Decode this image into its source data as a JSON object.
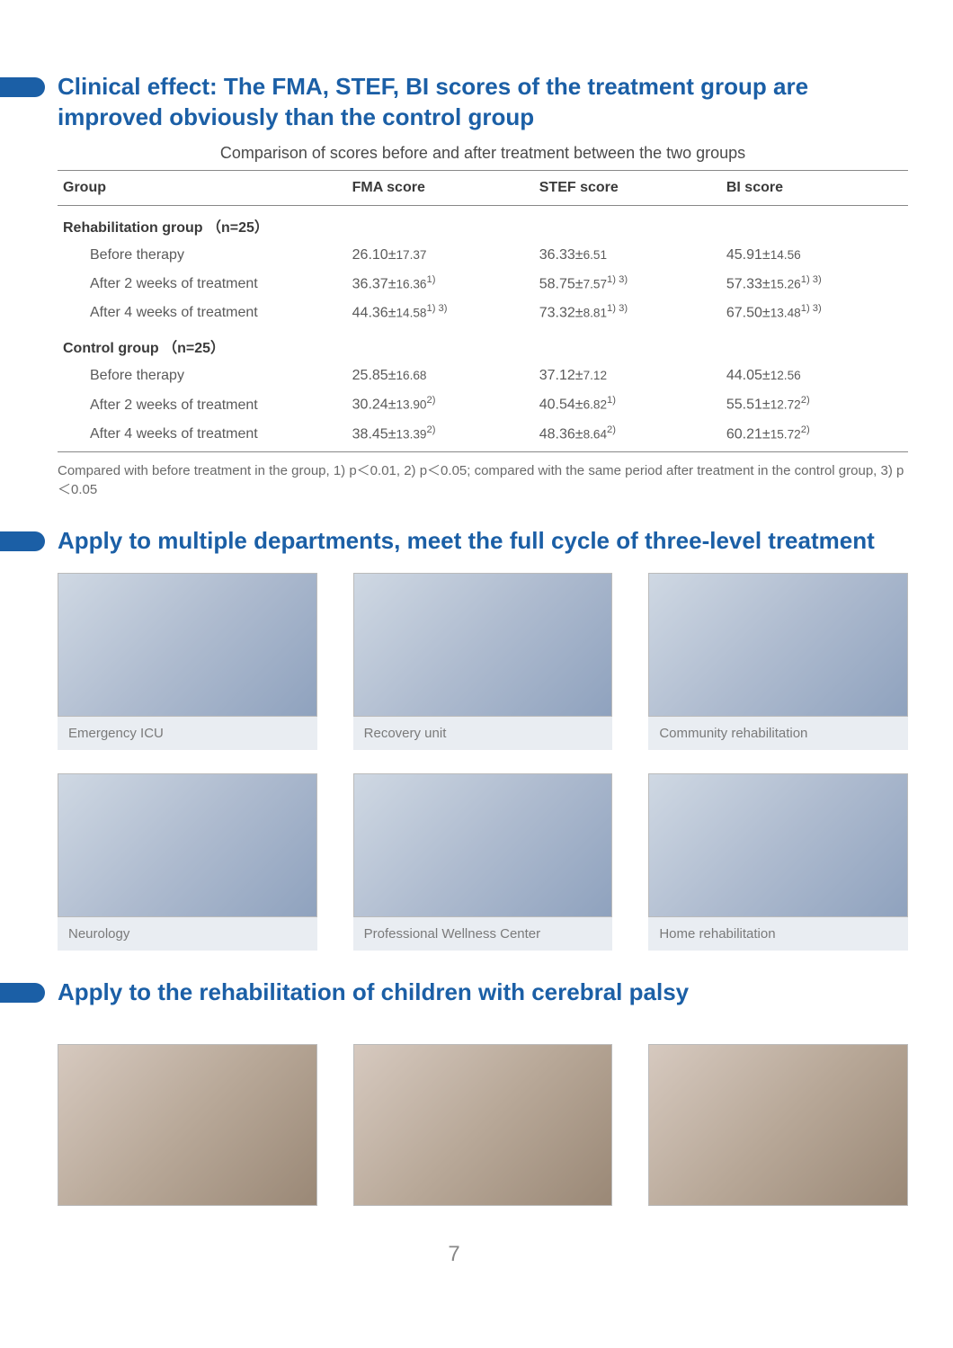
{
  "section1": {
    "title": "Clinical effect: The FMA, STEF, BI scores of the treatment group are improved obviously than the control group",
    "table_caption": "Comparison of scores before and after treatment between the two groups",
    "columns": [
      "Group",
      "FMA score",
      "STEF score",
      "BI score"
    ],
    "group1_label": "Rehabilitation group （n=25）",
    "group1_rows": [
      {
        "label": "Before therapy",
        "fma_m": "26.10",
        "fma_s": "17.37",
        "fma_sup": "",
        "stef_m": "36.33",
        "stef_s": "6.51",
        "stef_sup": "",
        "bi_m": "45.91",
        "bi_s": "14.56",
        "bi_sup": ""
      },
      {
        "label": "After 2 weeks of treatment",
        "fma_m": "36.37",
        "fma_s": "16.36",
        "fma_sup": "1)",
        "stef_m": "58.75",
        "stef_s": "7.57",
        "stef_sup": "1) 3)",
        "bi_m": "57.33",
        "bi_s": "15.26",
        "bi_sup": "1) 3)"
      },
      {
        "label": "After 4 weeks of treatment",
        "fma_m": "44.36",
        "fma_s": "14.58",
        "fma_sup": "1) 3)",
        "stef_m": "73.32",
        "stef_s": "8.81",
        "stef_sup": "1) 3)",
        "bi_m": "67.50",
        "bi_s": "13.48",
        "bi_sup": "1) 3)"
      }
    ],
    "group2_label": "Control group （n=25）",
    "group2_rows": [
      {
        "label": "Before therapy",
        "fma_m": "25.85",
        "fma_s": "16.68",
        "fma_sup": "",
        "stef_m": "37.12",
        "stef_s": "7.12",
        "stef_sup": "",
        "bi_m": "44.05",
        "bi_s": "12.56",
        "bi_sup": ""
      },
      {
        "label": "After 2 weeks of treatment",
        "fma_m": "30.24",
        "fma_s": "13.90",
        "fma_sup": "2)",
        "stef_m": "40.54",
        "stef_s": "6.82",
        "stef_sup": "1)",
        "bi_m": "55.51",
        "bi_s": "12.72",
        "bi_sup": "2)"
      },
      {
        "label": "After 4 weeks of treatment",
        "fma_m": "38.45",
        "fma_s": "13.39",
        "fma_sup": "2)",
        "stef_m": "48.36",
        "stef_s": "8.64",
        "stef_sup": "2)",
        "bi_m": "60.21",
        "bi_s": "15.72",
        "bi_sup": "2)"
      }
    ],
    "footnote": "Compared with before treatment in the group, 1) p＜0.01, 2) p＜0.05; compared with the same period after treatment in the control group, 3) p＜0.05"
  },
  "section2": {
    "title": "Apply to multiple departments, meet the full cycle of three-level treatment",
    "cards": [
      {
        "caption": "Emergency ICU"
      },
      {
        "caption": "Recovery unit"
      },
      {
        "caption": "Community rehabilitation"
      },
      {
        "caption": "Neurology"
      },
      {
        "caption": "Professional Wellness Center"
      },
      {
        "caption": "Home rehabilitation"
      }
    ]
  },
  "section3": {
    "title": "Apply to the rehabilitation of children with cerebral palsy",
    "image_count": 3
  },
  "page_number": "7",
  "colors": {
    "brand": "#1b5fa6",
    "text_body": "#5a5a5a",
    "text_head": "#3a3a3a",
    "rule": "#888888",
    "caption_bg": "#e9edf2"
  }
}
